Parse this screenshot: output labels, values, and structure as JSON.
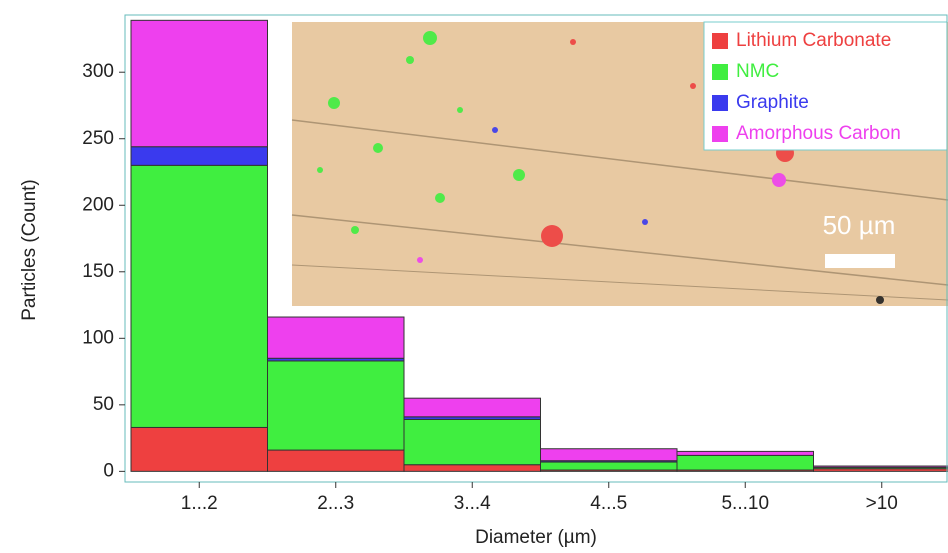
{
  "chart_data": {
    "type": "stacked_bar",
    "y_label": "Particles (Count)",
    "x_label": "Diameter (µm)",
    "categories": [
      "1...2",
      "2...3",
      "3...4",
      "4...5",
      "5...10",
      ">10"
    ],
    "series": [
      {
        "name": "Lithium Carbonate",
        "color": "#ee4040",
        "values": [
          33,
          16,
          5,
          1,
          1,
          2
        ]
      },
      {
        "name": "NMC",
        "color": "#40ee40",
        "values": [
          197,
          67,
          34,
          6,
          11,
          1
        ]
      },
      {
        "name": "Graphite",
        "color": "#3a3aee",
        "values": [
          14,
          2,
          2,
          1,
          0,
          0
        ]
      },
      {
        "name": "Amorphous Carbon",
        "color": "#ee40ee",
        "values": [
          95,
          31,
          14,
          9,
          3,
          1
        ]
      }
    ],
    "ylim": [
      -8,
      343
    ],
    "yticks": [
      0,
      50,
      100,
      150,
      200,
      250,
      300
    ],
    "scale_bar_label": "50 µm"
  }
}
